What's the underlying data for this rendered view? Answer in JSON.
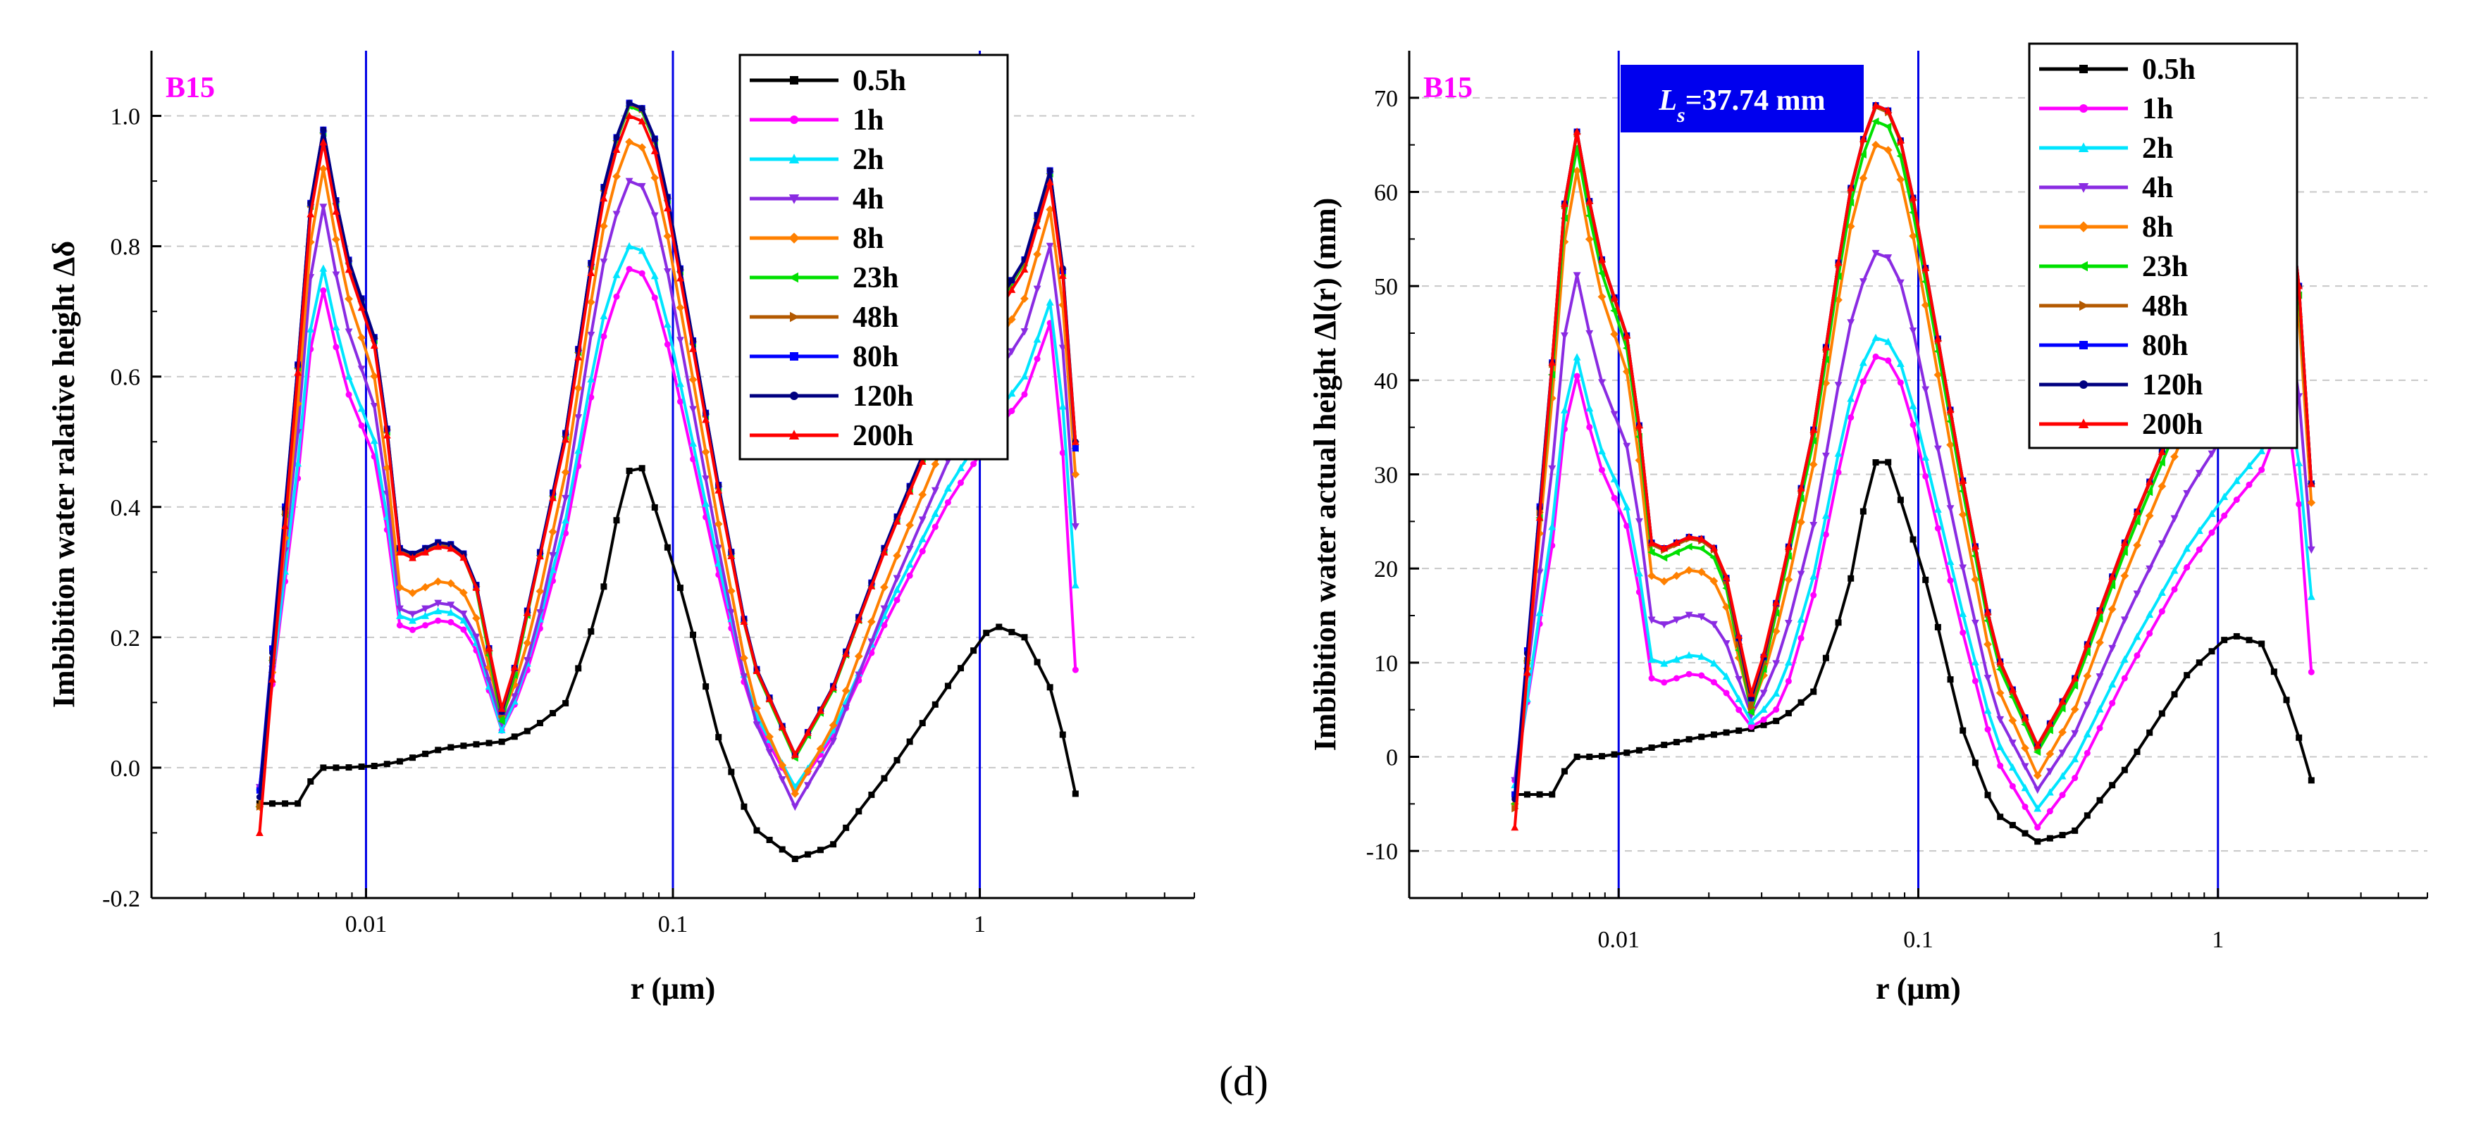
{
  "figure_label": "(d)",
  "legend_labels": [
    "0.5h",
    "1h",
    "2h",
    "4h",
    "8h",
    "23h",
    "48h",
    "80h",
    "120h",
    "200h"
  ],
  "series_colors": [
    "#000000",
    "#ff00ff",
    "#00e5ff",
    "#8a2be2",
    "#ff8000",
    "#00e000",
    "#b35900",
    "#0000ff",
    "#000080",
    "#ff0000"
  ],
  "chart_data": [
    {
      "type": "line",
      "title": "",
      "sample_label": "B15",
      "xlabel": "r  (μm)",
      "ylabel": "Imbibition water ralative height Δδ",
      "xscale": "log",
      "xlim": [
        0.002,
        5
      ],
      "ylim": [
        -0.2,
        1.1
      ],
      "x_ticks": [
        0.01,
        0.1,
        1
      ],
      "x_tick_labels": [
        "0.01",
        "0.1",
        "1"
      ],
      "y_ticks": [
        -0.2,
        0.0,
        0.2,
        0.4,
        0.6,
        0.8,
        1.0
      ],
      "y_tick_labels": [
        "-0.2",
        "0.0",
        "0.2",
        "0.4",
        "0.6",
        "0.8",
        "1.0"
      ],
      "vertical_lines": [
        0.01,
        0.1,
        1
      ],
      "legend_position": "top-right",
      "grid": "horizontal dashed",
      "anchors": {
        "x": [
          0.0045,
          0.006,
          0.007,
          0.0085,
          0.011,
          0.013,
          0.018,
          0.022,
          0.028,
          0.035,
          0.045,
          0.058,
          0.07,
          0.078,
          0.09,
          0.11,
          0.14,
          0.18,
          0.25,
          0.33,
          0.5,
          0.8,
          1.1,
          1.4,
          1.75,
          2.05
        ],
        "envelope": [
          0.0,
          0.6,
          1.0,
          0.78,
          0.62,
          0.3,
          0.33,
          0.3,
          0.12,
          0.26,
          0.5,
          0.85,
          1.0,
          1.0,
          0.93,
          0.7,
          0.42,
          0.15,
          0.0,
          0.1,
          0.33,
          0.56,
          0.68,
          0.76,
          0.92,
          0.8
        ]
      },
      "series": [
        {
          "name": "0.5h",
          "mode": "fixed",
          "y": [
            -0.055,
            -0.055,
            0.0,
            0.0,
            0.003,
            0.01,
            0.03,
            0.035,
            0.04,
            0.06,
            0.1,
            0.25,
            0.45,
            0.47,
            0.38,
            0.25,
            0.05,
            -0.09,
            -0.14,
            -0.12,
            -0.01,
            0.13,
            0.22,
            0.2,
            0.11,
            -0.04
          ]
        },
        {
          "name": "1h",
          "mode": "env",
          "base": -0.035,
          "amp": 0.8,
          "start": -0.03,
          "dip": 0.05,
          "end": 0.15
        },
        {
          "name": "2h",
          "mode": "env",
          "base": -0.03,
          "amp": 0.83,
          "start": -0.03,
          "dip": 0.05,
          "end": 0.28
        },
        {
          "name": "4h",
          "mode": "env",
          "base": -0.06,
          "amp": 0.96,
          "start": -0.03,
          "dip": 0.06,
          "end": 0.37
        },
        {
          "name": "8h",
          "mode": "env",
          "base": -0.04,
          "amp": 1.0,
          "start": -0.06,
          "dip": 0.07,
          "end": 0.45
        },
        {
          "name": "23h",
          "mode": "env",
          "base": 0.015,
          "amp": 1.0,
          "start": -0.06,
          "dip": 0.06,
          "end": 0.49
        },
        {
          "name": "48h",
          "mode": "env",
          "base": 0.018,
          "amp": 1.0,
          "start": -0.06,
          "dip": 0.07,
          "end": 0.5
        },
        {
          "name": "80h",
          "mode": "env",
          "base": 0.02,
          "amp": 1.0,
          "start": -0.035,
          "dip": 0.075,
          "end": 0.49
        },
        {
          "name": "120h",
          "mode": "env",
          "base": 0.02,
          "amp": 1.0,
          "start": -0.045,
          "dip": 0.075,
          "end": 0.5
        },
        {
          "name": "200h",
          "mode": "env",
          "base": 0.02,
          "amp": 0.98,
          "start": -0.1,
          "dip": 0.08,
          "end": 0.5
        }
      ]
    },
    {
      "type": "line",
      "title": "",
      "sample_label": "B15",
      "annotation": "Ls=37.74 mm",
      "annotation_parts": {
        "symbol": "L",
        "subscript": "s",
        "rest": "=37.74 mm"
      },
      "xlabel": "r  (μm)",
      "ylabel": "Imbibition water actual height Δl(r)  (mm)",
      "xscale": "log",
      "xlim": [
        0.002,
        5
      ],
      "ylim": [
        -15,
        75
      ],
      "x_ticks": [
        0.01,
        0.1,
        1
      ],
      "x_tick_labels": [
        "0.01",
        "0.1",
        "1"
      ],
      "y_ticks": [
        -10,
        0,
        10,
        20,
        30,
        40,
        50,
        60,
        70
      ],
      "y_tick_labels": [
        "-10",
        "0",
        "10",
        "20",
        "30",
        "40",
        "50",
        "60",
        "70"
      ],
      "vertical_lines": [
        0.01,
        0.1,
        1
      ],
      "legend_position": "top-right",
      "grid": "horizontal dashed",
      "anchors": {
        "x": [
          0.0045,
          0.006,
          0.007,
          0.0085,
          0.011,
          0.013,
          0.018,
          0.022,
          0.028,
          0.035,
          0.045,
          0.058,
          0.07,
          0.078,
          0.09,
          0.11,
          0.14,
          0.18,
          0.25,
          0.33,
          0.5,
          0.8,
          1.1,
          1.4,
          1.75,
          2.05
        ],
        "envelope": [
          0.0,
          0.6,
          1.0,
          0.78,
          0.62,
          0.3,
          0.33,
          0.3,
          0.12,
          0.26,
          0.5,
          0.85,
          1.0,
          1.0,
          0.93,
          0.7,
          0.42,
          0.15,
          0.0,
          0.1,
          0.33,
          0.56,
          0.68,
          0.76,
          0.92,
          0.8
        ]
      },
      "series": [
        {
          "name": "0.5h",
          "mode": "fixed",
          "y": [
            -4,
            -4,
            0,
            0,
            0.5,
            1,
            2,
            2.5,
            3,
            4,
            7,
            17,
            31,
            32,
            26,
            17,
            3,
            -6,
            -9,
            -8,
            -1,
            9,
            13,
            12,
            5,
            -2.5
          ]
        },
        {
          "name": "1h",
          "mode": "env",
          "base": -7.5,
          "amp": 50,
          "start": -2.5,
          "dip": 3,
          "end": 9
        },
        {
          "name": "2h",
          "mode": "env",
          "base": -5.5,
          "amp": 50,
          "start": -3,
          "dip": 3.5,
          "end": 17
        },
        {
          "name": "4h",
          "mode": "env",
          "base": -3.5,
          "amp": 57,
          "start": -2.5,
          "dip": 4,
          "end": 22
        },
        {
          "name": "8h",
          "mode": "env",
          "base": -2,
          "amp": 67,
          "start": -5,
          "dip": 4.5,
          "end": 27
        },
        {
          "name": "23h",
          "mode": "env",
          "base": 0.5,
          "amp": 67,
          "start": -5,
          "dip": 4,
          "end": 29
        },
        {
          "name": "48h",
          "mode": "env",
          "base": 1,
          "amp": 68,
          "start": -5.5,
          "dip": 4.5,
          "end": 29
        },
        {
          "name": "80h",
          "mode": "env",
          "base": 1.2,
          "amp": 68,
          "start": -4,
          "dip": 5.5,
          "end": 29
        },
        {
          "name": "120h",
          "mode": "env",
          "base": 1.2,
          "amp": 68,
          "start": -4.5,
          "dip": 5.5,
          "end": 29
        },
        {
          "name": "200h",
          "mode": "env",
          "base": 1.2,
          "amp": 68,
          "start": -7.5,
          "dip": 6,
          "end": 29
        }
      ]
    }
  ]
}
